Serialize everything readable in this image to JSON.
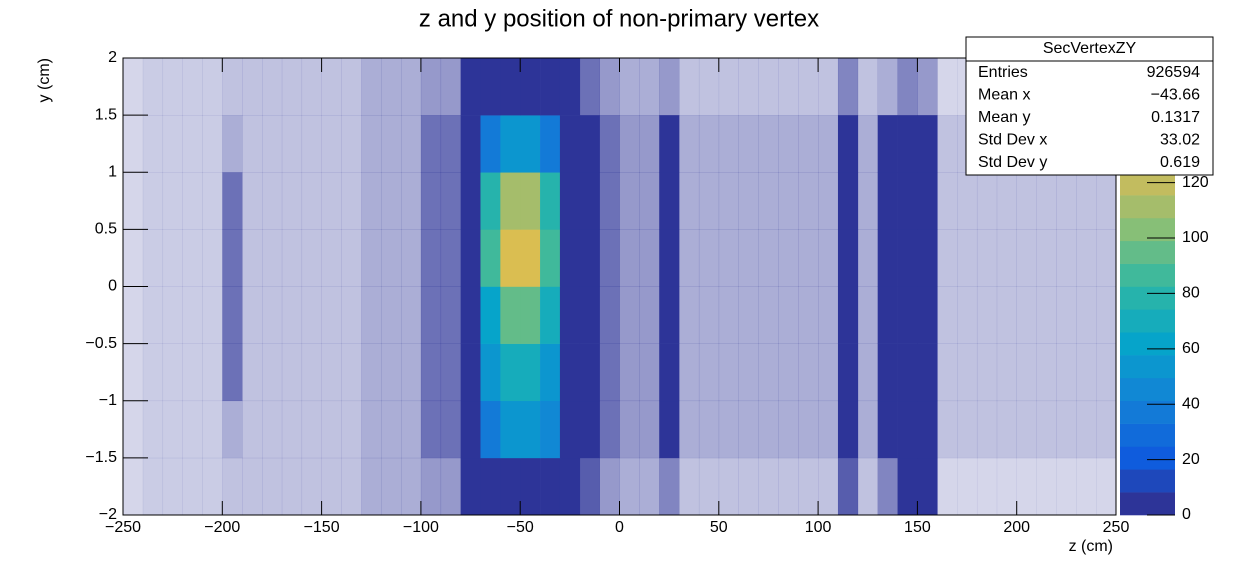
{
  "chart_data": {
    "type": "heatmap2d",
    "title": "z and y position of non-primary vertex",
    "x_label": "z (cm)",
    "y_label": "y (cm)",
    "xlim": [
      -250,
      250
    ],
    "ylim": [
      -2,
      2
    ],
    "zlim": [
      0,
      165
    ],
    "xticks": [
      {
        "value": -250,
        "label": "−250"
      },
      {
        "value": -200,
        "label": "−200"
      },
      {
        "value": -150,
        "label": "−150"
      },
      {
        "value": -100,
        "label": "−100"
      },
      {
        "value": -50,
        "label": "−50"
      },
      0,
      50,
      100,
      150,
      200,
      250
    ],
    "yticks": [
      {
        "value": -2,
        "label": "−2"
      },
      {
        "value": -1.5,
        "label": "−1.5"
      },
      {
        "value": -1,
        "label": "−1"
      },
      {
        "value": -0.5,
        "label": "−0.5"
      },
      0,
      0.5,
      1,
      1.5,
      2
    ],
    "zticks": [
      0,
      20,
      40,
      60,
      80,
      100,
      120
    ],
    "contours": 20,
    "palette": [
      "#352a87",
      "#0f5cdd",
      "#1481d6",
      "#06a4ca",
      "#2eb7a4",
      "#87bf77",
      "#d1bb59",
      "#fec832",
      "#f9fb0e"
    ],
    "x_edges": [
      -250,
      -240,
      -230,
      -220,
      -210,
      -200,
      -190,
      -180,
      -170,
      -160,
      -150,
      -140,
      -130,
      -120,
      -110,
      -100,
      -90,
      -80,
      -70,
      -60,
      -50,
      -40,
      -30,
      -20,
      -10,
      0,
      10,
      20,
      30,
      40,
      50,
      60,
      70,
      80,
      90,
      100,
      110,
      120,
      130,
      140,
      150,
      160,
      170,
      180,
      190,
      200,
      210,
      220,
      230,
      240,
      250
    ],
    "y_edges": [
      -2,
      -1.5,
      -1,
      -0.5,
      0,
      0.5,
      1,
      1.5,
      2
    ],
    "z": [
      [
        0.2,
        0.25,
        0.25,
        0.25,
        0.25,
        0.3,
        0.3,
        0.3,
        0.3,
        0.3,
        0.3,
        0.3,
        0.4,
        0.4,
        0.4,
        0.5,
        0.5,
        1.5,
        6,
        8,
        8,
        6,
        1.2,
        0.8,
        0.5,
        0.4,
        0.4,
        0.6,
        0.3,
        0.3,
        0.3,
        0.3,
        0.3,
        0.3,
        0.3,
        0.3,
        0.8,
        0.3,
        0.6,
        1.2,
        1,
        0.2,
        0.2,
        0.2,
        0.2,
        0.2,
        0.2,
        0.2,
        0.2,
        0.2
      ],
      [
        0.2,
        0.25,
        0.25,
        0.25,
        0.25,
        0.4,
        0.3,
        0.3,
        0.3,
        0.3,
        0.3,
        0.3,
        0.4,
        0.4,
        0.4,
        0.7,
        0.7,
        3,
        40,
        50,
        52,
        42,
        3,
        1.5,
        0.7,
        0.5,
        0.5,
        1,
        0.4,
        0.4,
        0.4,
        0.4,
        0.4,
        0.4,
        0.4,
        0.4,
        1.2,
        0.4,
        1.5,
        4,
        3,
        0.3,
        0.3,
        0.3,
        0.3,
        0.3,
        0.3,
        0.3,
        0.3,
        0.3
      ],
      [
        0.2,
        0.25,
        0.25,
        0.25,
        0.25,
        0.7,
        0.3,
        0.3,
        0.3,
        0.3,
        0.3,
        0.3,
        0.4,
        0.4,
        0.4,
        0.7,
        0.7,
        3,
        50,
        70,
        72,
        55,
        3,
        1.5,
        0.7,
        0.5,
        0.5,
        1,
        0.4,
        0.4,
        0.4,
        0.4,
        0.4,
        0.4,
        0.4,
        0.4,
        1.2,
        0.4,
        1.5,
        4,
        3,
        0.3,
        0.3,
        0.3,
        0.3,
        0.3,
        0.3,
        0.3,
        0.3,
        0.3
      ],
      [
        0.2,
        0.25,
        0.25,
        0.25,
        0.25,
        0.7,
        0.3,
        0.3,
        0.3,
        0.3,
        0.3,
        0.3,
        0.4,
        0.4,
        0.4,
        0.7,
        0.7,
        3,
        65,
        95,
        95,
        70,
        3,
        1.5,
        0.7,
        0.5,
        0.5,
        1,
        0.4,
        0.4,
        0.4,
        0.4,
        0.4,
        0.4,
        0.4,
        0.4,
        1.2,
        0.4,
        1.5,
        4,
        3,
        0.3,
        0.3,
        0.3,
        0.3,
        0.3,
        0.3,
        0.3,
        0.3,
        0.3
      ],
      [
        0.2,
        0.25,
        0.25,
        0.25,
        0.25,
        0.7,
        0.3,
        0.3,
        0.3,
        0.3,
        0.3,
        0.3,
        0.4,
        0.4,
        0.4,
        0.7,
        0.7,
        3,
        85,
        125,
        128,
        90,
        3,
        1.5,
        0.7,
        0.5,
        0.5,
        1,
        0.4,
        0.4,
        0.4,
        0.4,
        0.4,
        0.4,
        0.4,
        0.4,
        1.2,
        0.4,
        1.5,
        4,
        3,
        0.3,
        0.3,
        0.3,
        0.3,
        0.3,
        0.3,
        0.3,
        0.3,
        0.3
      ],
      [
        0.2,
        0.25,
        0.25,
        0.25,
        0.25,
        0.7,
        0.3,
        0.3,
        0.3,
        0.3,
        0.3,
        0.3,
        0.4,
        0.4,
        0.4,
        0.7,
        0.7,
        3,
        75,
        110,
        110,
        80,
        3,
        1.5,
        0.7,
        0.5,
        0.5,
        1,
        0.4,
        0.4,
        0.4,
        0.4,
        0.4,
        0.4,
        0.4,
        0.4,
        1.2,
        0.4,
        1.5,
        4,
        3,
        0.3,
        0.3,
        0.3,
        0.3,
        0.3,
        0.3,
        0.3,
        0.3,
        0.3
      ],
      [
        0.2,
        0.25,
        0.25,
        0.25,
        0.25,
        0.4,
        0.3,
        0.3,
        0.3,
        0.3,
        0.3,
        0.3,
        0.4,
        0.4,
        0.4,
        0.7,
        0.7,
        3,
        35,
        50,
        50,
        40,
        3,
        1.5,
        0.7,
        0.5,
        0.5,
        1,
        0.4,
        0.4,
        0.4,
        0.4,
        0.4,
        0.4,
        0.4,
        0.4,
        1.2,
        0.4,
        1.5,
        3,
        2.5,
        0.3,
        0.3,
        0.3,
        0.3,
        0.3,
        0.3,
        0.3,
        0.3,
        0.3
      ],
      [
        0.2,
        0.25,
        0.25,
        0.25,
        0.25,
        0.3,
        0.3,
        0.3,
        0.3,
        0.3,
        0.3,
        0.3,
        0.4,
        0.4,
        0.4,
        0.5,
        0.5,
        1.2,
        1.5,
        2,
        2,
        1.5,
        1,
        0.7,
        0.5,
        0.4,
        0.4,
        0.5,
        0.3,
        0.3,
        0.3,
        0.3,
        0.3,
        0.3,
        0.3,
        0.3,
        0.6,
        0.3,
        0.4,
        0.6,
        0.5,
        0.2,
        0.2,
        0.2,
        0.2,
        0.2,
        0.2,
        0.2,
        0.2,
        0.2
      ]
    ],
    "stats": {
      "title": "SecVertexZY",
      "rows": [
        [
          "Entries",
          "926594"
        ],
        [
          "Mean x",
          "−43.66"
        ],
        [
          "Mean y",
          "0.1317"
        ],
        [
          "Std Dev x",
          "33.02"
        ],
        [
          "Std Dev y",
          "0.619"
        ]
      ]
    }
  }
}
